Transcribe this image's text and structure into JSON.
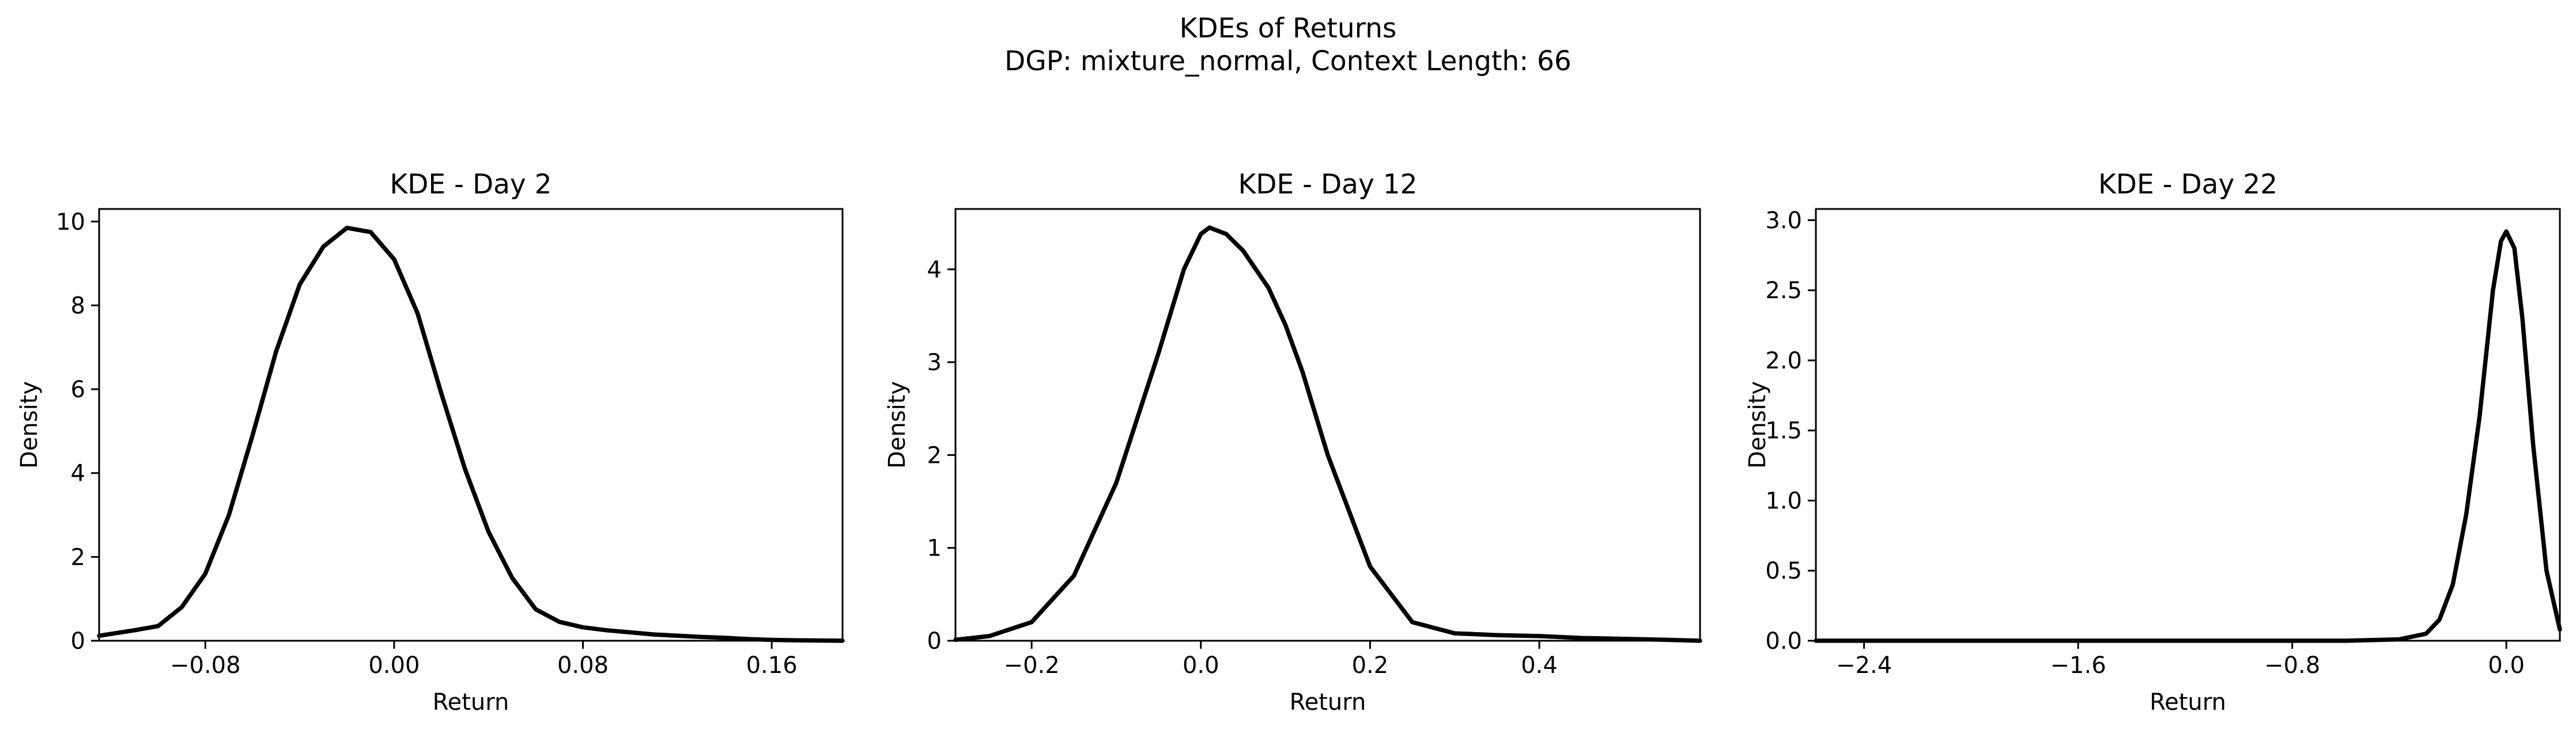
{
  "figure": {
    "suptitle_line1": "KDEs of Returns",
    "suptitle_line2": "DGP: mixture_normal, Context Length: 66"
  },
  "chart_data": [
    {
      "type": "line",
      "title": "KDE - Day 2",
      "xlabel": "Return",
      "ylabel": "Density",
      "xlim": [
        -0.125,
        0.19
      ],
      "ylim": [
        0,
        10.3
      ],
      "xticks": [
        -0.08,
        0.0,
        0.08,
        0.16
      ],
      "xtick_labels": [
        "−0.08",
        "0.00",
        "0.08",
        "0.16"
      ],
      "yticks": [
        0,
        2,
        4,
        6,
        8,
        10
      ],
      "ytick_labels": [
        "0",
        "2",
        "4",
        "6",
        "8",
        "10"
      ],
      "grid": false,
      "series": [
        {
          "x": [
            -0.125,
            -0.11,
            -0.1,
            -0.09,
            -0.08,
            -0.07,
            -0.06,
            -0.05,
            -0.04,
            -0.03,
            -0.02,
            -0.01,
            0.0,
            0.01,
            0.02,
            0.03,
            0.04,
            0.05,
            0.06,
            0.07,
            0.08,
            0.09,
            0.1,
            0.11,
            0.12,
            0.13,
            0.14,
            0.15,
            0.16,
            0.17,
            0.18,
            0.19
          ],
          "y": [
            0.12,
            0.25,
            0.35,
            0.8,
            1.6,
            3.0,
            4.9,
            6.9,
            8.5,
            9.4,
            9.85,
            9.75,
            9.1,
            7.8,
            5.9,
            4.1,
            2.6,
            1.5,
            0.75,
            0.45,
            0.32,
            0.25,
            0.2,
            0.15,
            0.12,
            0.09,
            0.07,
            0.04,
            0.02,
            0.01,
            0.005,
            0.0
          ]
        }
      ]
    },
    {
      "type": "line",
      "title": "KDE - Day 12",
      "xlabel": "Return",
      "ylabel": "Density",
      "xlim": [
        -0.29,
        0.59
      ],
      "ylim": [
        0,
        4.65
      ],
      "xticks": [
        -0.2,
        0.0,
        0.2,
        0.4
      ],
      "xtick_labels": [
        "−0.2",
        "0.0",
        "0.2",
        "0.4"
      ],
      "yticks": [
        0,
        1,
        2,
        3,
        4
      ],
      "ytick_labels": [
        "0",
        "1",
        "2",
        "3",
        "4"
      ],
      "grid": false,
      "series": [
        {
          "x": [
            -0.29,
            -0.25,
            -0.2,
            -0.15,
            -0.1,
            -0.05,
            -0.02,
            0.0,
            0.01,
            0.03,
            0.05,
            0.08,
            0.1,
            0.12,
            0.15,
            0.2,
            0.25,
            0.3,
            0.35,
            0.4,
            0.45,
            0.5,
            0.55,
            0.59
          ],
          "y": [
            0.01,
            0.05,
            0.2,
            0.7,
            1.7,
            3.1,
            4.0,
            4.38,
            4.45,
            4.38,
            4.2,
            3.8,
            3.4,
            2.9,
            2.0,
            0.8,
            0.2,
            0.08,
            0.06,
            0.05,
            0.03,
            0.02,
            0.01,
            0.0
          ]
        }
      ]
    },
    {
      "type": "line",
      "title": "KDE - Day 22",
      "xlabel": "Return",
      "ylabel": "Density",
      "xlim": [
        -2.58,
        0.2
      ],
      "ylim": [
        0,
        3.08
      ],
      "xticks": [
        -2.4,
        -1.6,
        -0.8,
        0.0
      ],
      "xtick_labels": [
        "−2.4",
        "−1.6",
        "−0.8",
        "0.0"
      ],
      "yticks": [
        0.0,
        0.5,
        1.0,
        1.5,
        2.0,
        2.5,
        3.0
      ],
      "ytick_labels": [
        "0.0",
        "0.5",
        "1.0",
        "1.5",
        "2.0",
        "2.5",
        "3.0"
      ],
      "grid": false,
      "series": [
        {
          "x": [
            -2.58,
            -1.5,
            -0.6,
            -0.4,
            -0.3,
            -0.25,
            -0.2,
            -0.15,
            -0.1,
            -0.05,
            -0.02,
            0.0,
            0.03,
            0.06,
            0.1,
            0.15,
            0.2
          ],
          "y": [
            0.0,
            0.0,
            0.0,
            0.01,
            0.05,
            0.15,
            0.4,
            0.9,
            1.6,
            2.5,
            2.85,
            2.92,
            2.8,
            2.3,
            1.4,
            0.5,
            0.08
          ]
        }
      ]
    }
  ]
}
